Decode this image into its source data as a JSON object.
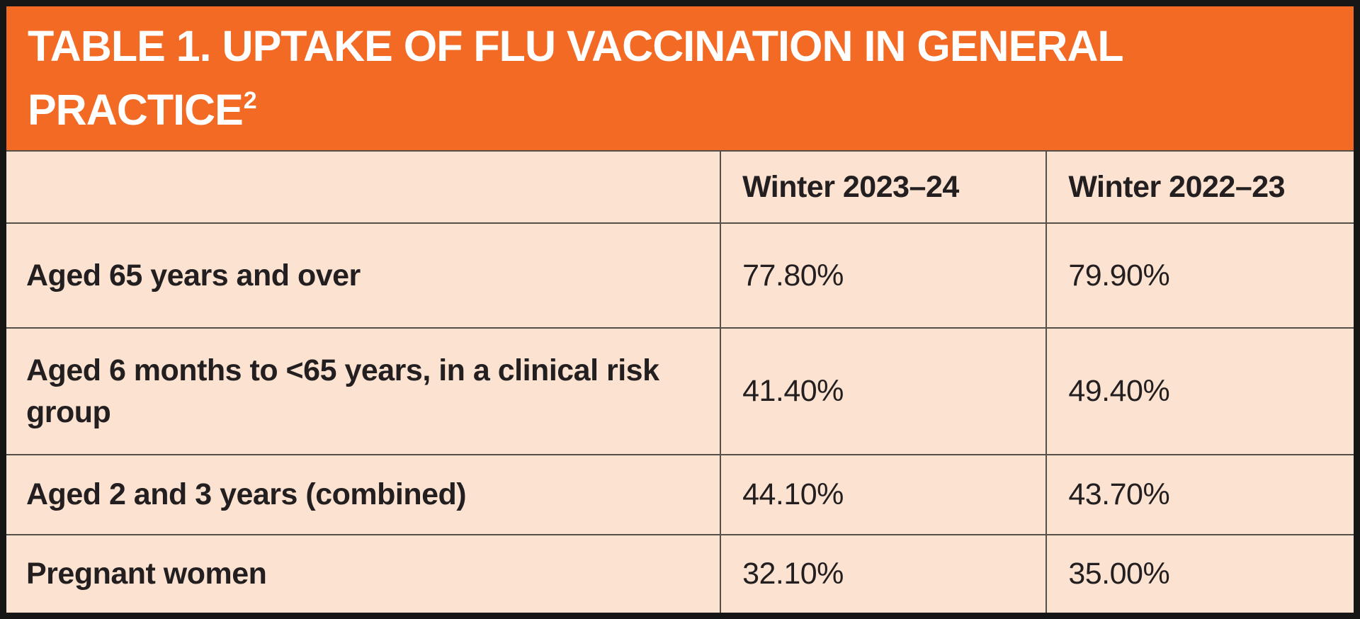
{
  "colors": {
    "banner_bg": "#F26A24",
    "cell_bg": "#FCE3D1",
    "grid_line": "#554f49",
    "outer_border": "#161616",
    "title_text": "#FFFFFF",
    "body_text": "#231F20"
  },
  "header": {
    "title": "TABLE 1. UPTAKE OF FLU VACCINATION IN GENERAL PRACTICE",
    "superscript": "2"
  },
  "table": {
    "columns": [
      "",
      "Winter 2023–24",
      "Winter 2022–23"
    ],
    "rows": [
      {
        "label": "Aged 65 years and over",
        "values": [
          "77.80%",
          "79.90%"
        ]
      },
      {
        "label": "Aged 6 months to <65 years, in a clinical risk group",
        "values": [
          "41.40%",
          "49.40%"
        ]
      },
      {
        "label": "Aged 2 and 3 years (combined)",
        "values": [
          "44.10%",
          "43.70%"
        ]
      },
      {
        "label": "Pregnant women",
        "values": [
          "32.10%",
          "35.00%"
        ]
      }
    ]
  },
  "chart_data": {
    "type": "table",
    "title": "TABLE 1. UPTAKE OF FLU VACCINATION IN GENERAL PRACTICE²",
    "columns": [
      "Winter 2023–24",
      "Winter 2022–23"
    ],
    "categories": [
      "Aged 65 years and over",
      "Aged 6 months to <65 years, in a clinical risk group",
      "Aged 2 and 3 years (combined)",
      "Pregnant women"
    ],
    "series": [
      {
        "name": "Winter 2023–24",
        "values": [
          77.8,
          41.4,
          44.1,
          32.1
        ]
      },
      {
        "name": "Winter 2022–23",
        "values": [
          79.9,
          49.4,
          43.7,
          35.0
        ]
      }
    ],
    "unit": "%"
  }
}
